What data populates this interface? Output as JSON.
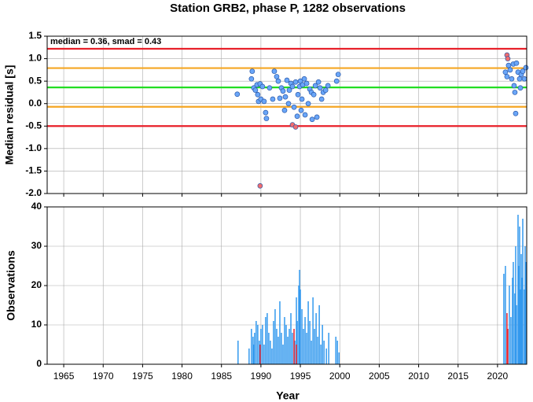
{
  "chart_data": [
    {
      "type": "scatter",
      "title": "Station GRB2, phase P, 1282 observations",
      "y_label": "Median residual [s]",
      "annotation": "median = 0.36, smad = 0.43",
      "xlim": [
        1962.9,
        2023.7
      ],
      "xticks": [
        1965,
        1970,
        1975,
        1980,
        1985,
        1990,
        1995,
        2000,
        2005,
        2010,
        2015,
        2020
      ],
      "ylim": [
        -2.0,
        1.5
      ],
      "yticks": [
        {
          "value": -2.0,
          "label": "-2.0"
        },
        -1.5,
        {
          "value": -1.0,
          "label": "-1.0"
        },
        -0.5,
        {
          "value": 0.0,
          "label": "0.0"
        },
        0.5,
        {
          "value": 1.0,
          "label": "1.0"
        },
        1.5
      ],
      "grid": true,
      "hlines": [
        {
          "value": 1.22,
          "color": "#e8202a"
        },
        {
          "value": 0.79,
          "color": "#f5a623"
        },
        {
          "value": 0.36,
          "color": "#22dd22"
        },
        {
          "value": -0.07,
          "color": "#f5a623"
        },
        {
          "value": -0.5,
          "color": "#e8202a"
        }
      ],
      "series": [
        {
          "color": "#6aa6f8",
          "x": [
            1987.0,
            1988.8,
            1988.9,
            1989.1,
            1989.3,
            1989.5,
            1989.6,
            1989.7,
            1989.9,
            1990.0,
            1990.2,
            1990.4,
            1990.6,
            1990.7,
            1991.1,
            1991.5,
            1991.7,
            1992.0,
            1992.2,
            1992.4,
            1992.6,
            1992.8,
            1993.0,
            1993.1,
            1993.3,
            1993.5,
            1993.6,
            1993.8,
            1994.0,
            1994.2,
            1994.4,
            1994.6,
            1994.7,
            1994.9,
            1995.0,
            1995.1,
            1995.2,
            1995.3,
            1995.5,
            1995.6,
            1995.8,
            1996.0,
            1996.2,
            1996.4,
            1996.5,
            1996.7,
            1996.9,
            1997.1,
            1997.3,
            1997.5,
            1997.7,
            1997.9,
            1998.2,
            1998.5,
            1999.6,
            1999.8,
            2021.0,
            2021.2,
            2021.4,
            2021.6,
            2021.8,
            2022.0,
            2022.1,
            2022.2,
            2022.3,
            2022.4,
            2022.6,
            2022.8,
            2022.9,
            2023.0,
            2023.2,
            2023.4,
            2023.6
          ],
          "values": [
            0.21,
            0.55,
            0.72,
            0.35,
            0.3,
            0.42,
            0.2,
            0.05,
            0.44,
            0.1,
            0.38,
            0.05,
            -0.2,
            -0.33,
            0.35,
            0.1,
            0.72,
            0.6,
            0.5,
            0.12,
            0.35,
            0.28,
            -0.15,
            0.15,
            0.52,
            0.0,
            0.3,
            0.45,
            0.38,
            -0.08,
            0.48,
            -0.28,
            0.2,
            0.38,
            0.5,
            -0.15,
            0.1,
            0.42,
            0.55,
            -0.25,
            0.45,
            0.0,
            0.32,
            0.25,
            -0.35,
            0.2,
            0.4,
            -0.3,
            0.48,
            0.35,
            0.1,
            0.25,
            0.3,
            0.4,
            0.5,
            0.65,
            0.7,
            0.6,
            0.85,
            0.75,
            0.55,
            0.88,
            0.4,
            0.25,
            -0.22,
            0.9,
            0.7,
            0.55,
            0.35,
            0.65,
            0.72,
            0.55,
            0.8
          ]
        },
        {
          "color": "#f26d6d",
          "x": [
            1989.9,
            1994.0,
            1994.4,
            2021.2,
            2021.3
          ],
          "values": [
            -1.83,
            -0.47,
            -0.52,
            1.08,
            1.0
          ]
        }
      ]
    },
    {
      "type": "bar",
      "y_label": "Observations",
      "x_label": "Year",
      "xlim": [
        1962.9,
        2023.7
      ],
      "xticks": [
        1965,
        1970,
        1975,
        1980,
        1985,
        1990,
        1995,
        2000,
        2005,
        2010,
        2015,
        2020
      ],
      "ylim": [
        0,
        40
      ],
      "yticks": [
        0,
        10,
        20,
        30,
        40
      ],
      "grid": true,
      "series": [
        {
          "color": "#3399ee",
          "x": [
            1987.1,
            1988.5,
            1988.8,
            1989.0,
            1989.1,
            1989.2,
            1989.4,
            1989.6,
            1989.8,
            1990.0,
            1990.2,
            1990.4,
            1990.6,
            1990.8,
            1991.0,
            1991.2,
            1991.4,
            1991.6,
            1991.8,
            1992.0,
            1992.2,
            1992.4,
            1992.6,
            1992.8,
            1993.0,
            1993.2,
            1993.4,
            1993.6,
            1993.8,
            1994.0,
            1994.3,
            1994.5,
            1994.6,
            1994.8,
            1994.9,
            1995.0,
            1995.2,
            1995.4,
            1995.6,
            1995.8,
            1996.0,
            1996.2,
            1996.4,
            1996.6,
            1996.8,
            1997.0,
            1997.2,
            1997.4,
            1997.6,
            1997.8,
            1998.0,
            1998.3,
            1998.6,
            1999.5,
            1999.7,
            1999.9,
            2020.8,
            2021.0,
            2021.5,
            2021.7,
            2021.9,
            2022.0,
            2022.2,
            2022.3,
            2022.4,
            2022.6,
            2022.7,
            2022.8,
            2022.9,
            2023.0,
            2023.1,
            2023.2,
            2023.4,
            2023.5,
            2023.6
          ],
          "values": [
            6,
            4,
            9,
            7,
            5,
            8,
            11,
            10,
            6,
            9,
            10,
            5,
            12,
            13,
            8,
            6,
            4,
            11,
            14,
            9,
            7,
            16,
            8,
            5,
            12,
            10,
            7,
            9,
            13,
            8,
            6,
            17,
            11,
            20,
            24,
            19,
            14,
            9,
            12,
            8,
            16,
            11,
            6,
            17,
            9,
            13,
            7,
            15,
            5,
            10,
            6,
            4,
            8,
            7,
            6,
            3,
            23,
            25,
            20,
            12,
            22,
            26,
            18,
            30,
            15,
            38,
            25,
            35,
            19,
            28,
            22,
            37,
            19,
            30,
            26
          ]
        },
        {
          "color": "#e8202a",
          "x": [
            1989.9,
            1994.2,
            1994.5,
            2021.2,
            2021.3
          ],
          "values": [
            5,
            9,
            5,
            13,
            9
          ]
        }
      ]
    }
  ]
}
